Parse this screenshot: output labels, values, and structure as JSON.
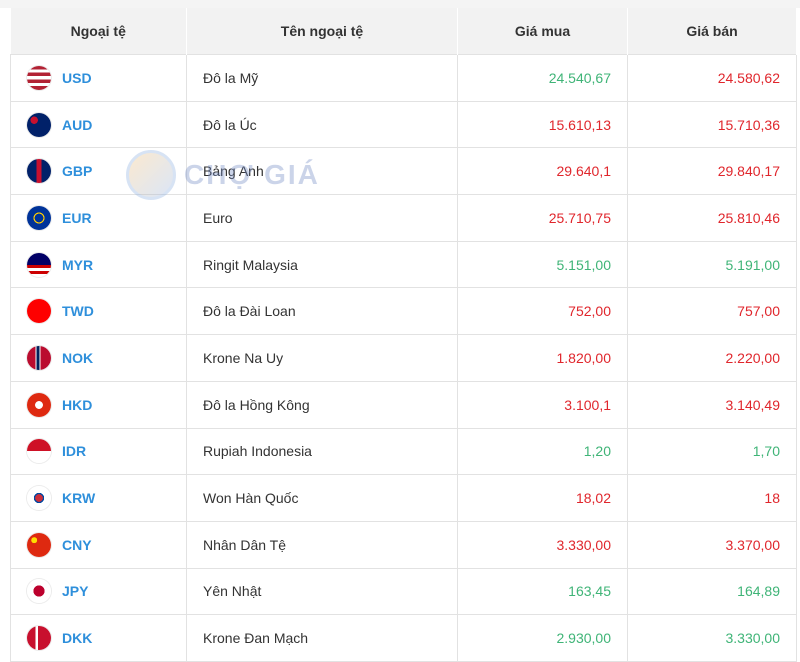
{
  "header": {
    "code": "Ngoại tệ",
    "name": "Tên ngoại tệ",
    "buy": "Giá mua",
    "sell": "Giá bán"
  },
  "watermark": "CHỢ GIÁ",
  "colors": {
    "up": "#3fb477",
    "down": "#e0262c",
    "code": "#2e8fdb"
  },
  "rows": [
    {
      "code": "USD",
      "name": "Đô la Mỹ",
      "buy": "24.540,67",
      "sell": "24.580,62",
      "buy_trend": "up",
      "sell_trend": "down",
      "flag": "linear-gradient(#b22234 0 14%,#fff 14% 28%,#b22234 28% 42%,#fff 42% 56%,#b22234 56% 70%,#fff 70% 84%,#b22234 84%)"
    },
    {
      "code": "AUD",
      "name": "Đô la Úc",
      "buy": "15.610,13",
      "sell": "15.710,36",
      "buy_trend": "down",
      "sell_trend": "down",
      "flag": "radial-gradient(circle at 30% 30%,#c8102e 0 15%,#012169 16%)"
    },
    {
      "code": "GBP",
      "name": "Bảng Anh",
      "buy": "29.640,1",
      "sell": "29.840,17",
      "buy_trend": "down",
      "sell_trend": "down",
      "flag": "linear-gradient(90deg,#012169 40%,#c8102e 40% 60%,#012169 60%)"
    },
    {
      "code": "EUR",
      "name": "Euro",
      "buy": "25.710,75",
      "sell": "25.810,46",
      "buy_trend": "down",
      "sell_trend": "down",
      "flag": "radial-gradient(circle,#003399 0 25%,#ffcc00 26% 32%,#003399 33%)"
    },
    {
      "code": "MYR",
      "name": "Ringit Malaysia",
      "buy": "5.151,00",
      "sell": "5.191,00",
      "buy_trend": "up",
      "sell_trend": "up",
      "flag": "linear-gradient(#010066 0 50%,#cc0001 50% 62%,#fff 62% 75%,#cc0001 75% 87%,#fff 87%)"
    },
    {
      "code": "TWD",
      "name": "Đô la Đài Loan",
      "buy": "752,00",
      "sell": "757,00",
      "buy_trend": "down",
      "sell_trend": "down",
      "flag": "linear-gradient(#fe0000 0 100%)"
    },
    {
      "code": "NOK",
      "name": "Krone Na Uy",
      "buy": "1.820,00",
      "sell": "2.220,00",
      "buy_trend": "down",
      "sell_trend": "down",
      "flag": "linear-gradient(90deg,#ba0c2f 35%,#fff 35% 40%,#00205b 40% 52%,#fff 52% 57%,#ba0c2f 57%)"
    },
    {
      "code": "HKD",
      "name": "Đô la Hồng Kông",
      "buy": "3.100,1",
      "sell": "3.140,49",
      "buy_trend": "down",
      "sell_trend": "down",
      "flag": "radial-gradient(circle,#fff 0 22%,#de2910 24%)"
    },
    {
      "code": "IDR",
      "name": "Rupiah Indonesia",
      "buy": "1,20",
      "sell": "1,70",
      "buy_trend": "up",
      "sell_trend": "up",
      "flag": "linear-gradient(#ce1126 50%,#fff 50%)"
    },
    {
      "code": "KRW",
      "name": "Won Hàn Quốc",
      "buy": "18,02",
      "sell": "18",
      "buy_trend": "down",
      "sell_trend": "down",
      "flag": "radial-gradient(circle,#cd2e3a 0 22%,#0047a0 23% 30%,#fff 31%)"
    },
    {
      "code": "CNY",
      "name": "Nhân Dân Tệ",
      "buy": "3.330,00",
      "sell": "3.370,00",
      "buy_trend": "down",
      "sell_trend": "down",
      "flag": "radial-gradient(circle at 30% 30%,#ffde00 0 12%,#de2910 13%)"
    },
    {
      "code": "JPY",
      "name": "Yên Nhật",
      "buy": "163,45",
      "sell": "164,89",
      "buy_trend": "up",
      "sell_trend": "up",
      "flag": "radial-gradient(circle,#bc002d 0 32%,#fff 34%)"
    },
    {
      "code": "DKK",
      "name": "Krone Đan Mạch",
      "buy": "2.930,00",
      "sell": "3.330,00",
      "buy_trend": "up",
      "sell_trend": "up",
      "flag": "linear-gradient(90deg,#c8102e 35%,#fff 35% 45%,#c8102e 45%)"
    }
  ]
}
